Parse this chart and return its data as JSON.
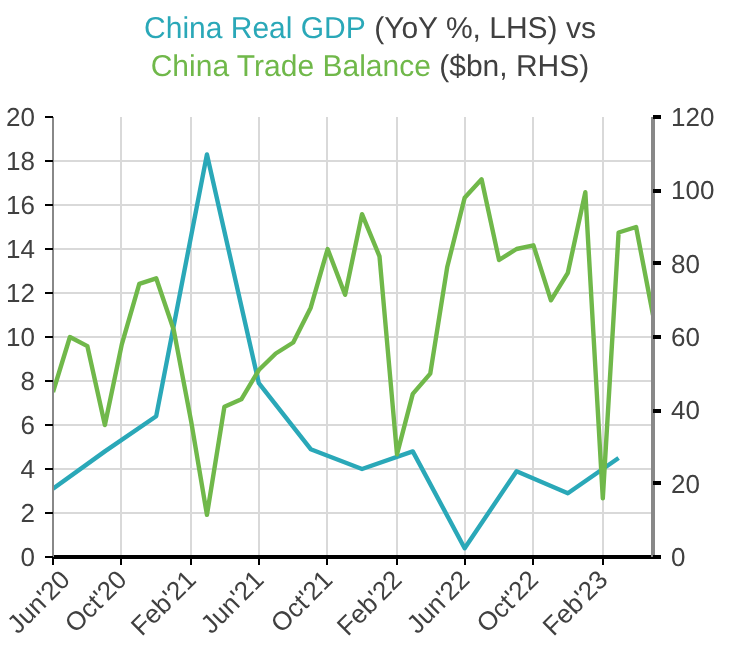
{
  "chart_data": {
    "type": "line",
    "title": "(YoY %, LHS) vs",
    "subtitle": "($bn, RHS)",
    "xlim": [
      "2020-06",
      "2023-05"
    ],
    "xticks": [
      {
        "value": "2020-06",
        "label": "Jun'20"
      },
      {
        "value": "2020-10",
        "label": "Oct'20"
      },
      {
        "value": "2021-02",
        "label": "Feb'21"
      },
      {
        "value": "2021-06",
        "label": "Jun'21"
      },
      {
        "value": "2021-10",
        "label": "Oct'21"
      },
      {
        "value": "2022-02",
        "label": "Feb'22"
      },
      {
        "value": "2022-06",
        "label": "Jun'22"
      },
      {
        "value": "2022-10",
        "label": "Oct'22"
      },
      {
        "value": "2023-02",
        "label": "Feb'23"
      }
    ],
    "ylim": [
      0,
      20
    ],
    "yticks": [
      0,
      2,
      4,
      6,
      8,
      10,
      12,
      14,
      16,
      18,
      20
    ],
    "y2lim": [
      0,
      120
    ],
    "y2ticks": [
      0,
      20,
      40,
      60,
      80,
      100,
      120
    ],
    "grid": true,
    "marker": "none",
    "line_style": "solid",
    "series": [
      {
        "name": "China Real GDP",
        "color": "#2aa8b8",
        "x": [
          "2020-06",
          "2020-09",
          "2020-12",
          "2021-03",
          "2021-06",
          "2021-09",
          "2021-12",
          "2022-03",
          "2022-06",
          "2022-09",
          "2022-12",
          "2023-03"
        ],
        "values": [
          3.1,
          4.8,
          6.4,
          18.3,
          7.9,
          4.9,
          4.0,
          4.8,
          0.4,
          3.9,
          2.9,
          4.5
        ]
      },
      {
        "name": "China Trade Balance",
        "color": "#70b84a",
        "axis": "y2",
        "x": [
          "2020-06",
          "2020-07",
          "2020-08",
          "2020-09",
          "2020-10",
          "2020-11",
          "2020-12",
          "2021-01",
          "2021-02",
          "2021-03",
          "2021-04",
          "2021-05",
          "2021-06",
          "2021-07",
          "2021-08",
          "2021-09",
          "2021-10",
          "2021-11",
          "2021-12",
          "2022-01",
          "2022-02",
          "2022-03",
          "2022-04",
          "2022-05",
          "2022-06",
          "2022-07",
          "2022-08",
          "2022-09",
          "2022-10",
          "2022-11",
          "2022-12",
          "2023-01",
          "2023-02",
          "2023-03",
          "2023-04",
          "2023-05"
        ],
        "values": [
          45,
          60,
          57.5,
          36,
          58,
          74.5,
          76,
          62,
          37,
          11.5,
          41,
          43,
          51,
          55.5,
          58.5,
          68,
          84,
          71.5,
          93.5,
          82,
          28,
          44.5,
          50,
          79,
          98,
          103,
          81,
          84,
          85,
          70,
          77.5,
          99.5,
          16,
          88.5,
          90,
          66
        ]
      }
    ]
  }
}
